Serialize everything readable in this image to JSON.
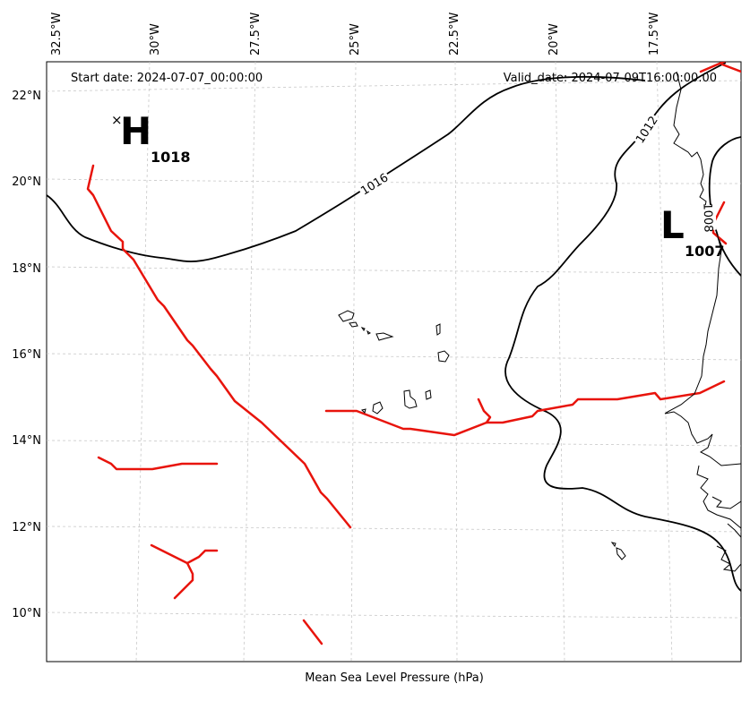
{
  "header": {
    "start_date": "Start date: 2024-07-07_00:00:00",
    "valid_date": "Valid_date: 2024-07-09T16:00:00.00"
  },
  "footer": {
    "caption": "Mean Sea Level Pressure (hPa)"
  },
  "longitude_labels": [
    "32.5°W",
    "30°W",
    "27.5°W",
    "25°W",
    "22.5°W",
    "20°W",
    "17.5°W"
  ],
  "latitude_labels": [
    "22°N",
    "20°N",
    "18°N",
    "16°N",
    "14°N",
    "12°N",
    "10°N"
  ],
  "pressure_centers": [
    {
      "type": "H",
      "value": "1018"
    },
    {
      "type": "L",
      "value": "1007"
    }
  ],
  "isobar_labels": [
    "1016",
    "1012",
    "1008"
  ],
  "colors": {
    "isobar": "#000000",
    "front": "#e8140c",
    "grid": "#c8c8c8"
  }
}
